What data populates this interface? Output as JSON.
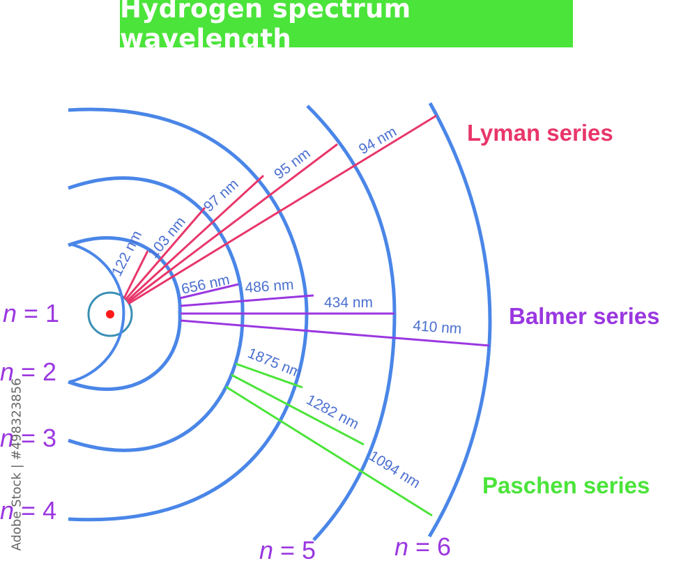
{
  "title": "Hydrogen spectrum wavelength",
  "levels": [
    {
      "n": "1",
      "label_prefix": "n",
      "label_rest": " = 1"
    },
    {
      "n": "2",
      "label_prefix": "n",
      "label_rest": " = 2"
    },
    {
      "n": "3",
      "label_prefix": "n",
      "label_rest": " = 3"
    },
    {
      "n": "4",
      "label_prefix": "n",
      "label_rest": " = 4"
    },
    {
      "n": "5",
      "label_prefix": "n",
      "label_rest": " = 5"
    },
    {
      "n": "6",
      "label_prefix": "n",
      "label_rest": " = 6"
    }
  ],
  "series": {
    "lyman": {
      "name": "Lyman series",
      "color": "#e8366a",
      "lines": [
        "122 nm",
        "103 nm",
        "97 nm",
        "95 nm",
        "94 nm"
      ]
    },
    "balmer": {
      "name": "Balmer series",
      "color": "#9a37e0",
      "lines": [
        "656 nm",
        "486 nm",
        "434 nm",
        "410 nm"
      ]
    },
    "paschen": {
      "name": "Paschen series",
      "color": "#4be43a",
      "lines": [
        "1875 nm",
        "1282 nm",
        "1094 nm"
      ]
    }
  },
  "colors": {
    "orbit": "#4a86e8",
    "nucleus": "#ff1a1a",
    "level_label": "#9a37e0",
    "wavelength_label": "#4a6fd0",
    "title_bg": "#4be43a"
  },
  "watermark": "Adobe Stock | #498323856"
}
